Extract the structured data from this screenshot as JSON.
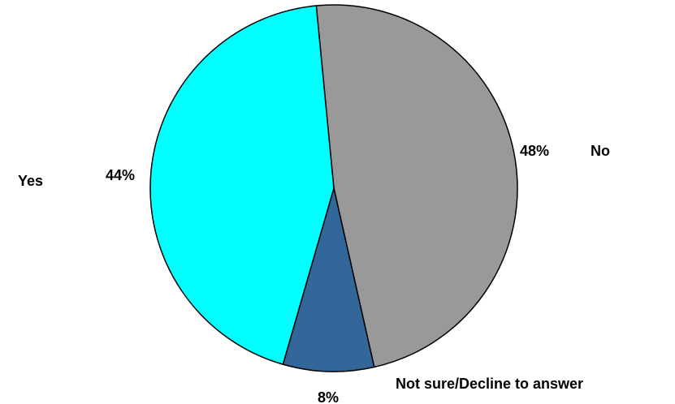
{
  "chart_data": {
    "type": "pie",
    "title": "",
    "start_angle_deg": -5.5,
    "direction": "clockwise",
    "legend": "none",
    "slices": [
      {
        "name": "No",
        "value": 48,
        "label": "48%",
        "color": "#999999"
      },
      {
        "name": "Not sure/Decline to answer",
        "value": 8,
        "label": "8%",
        "color": "#336699"
      },
      {
        "name": "Yes",
        "value": 44,
        "label": "44%",
        "color": "#00FFFF"
      }
    ]
  }
}
